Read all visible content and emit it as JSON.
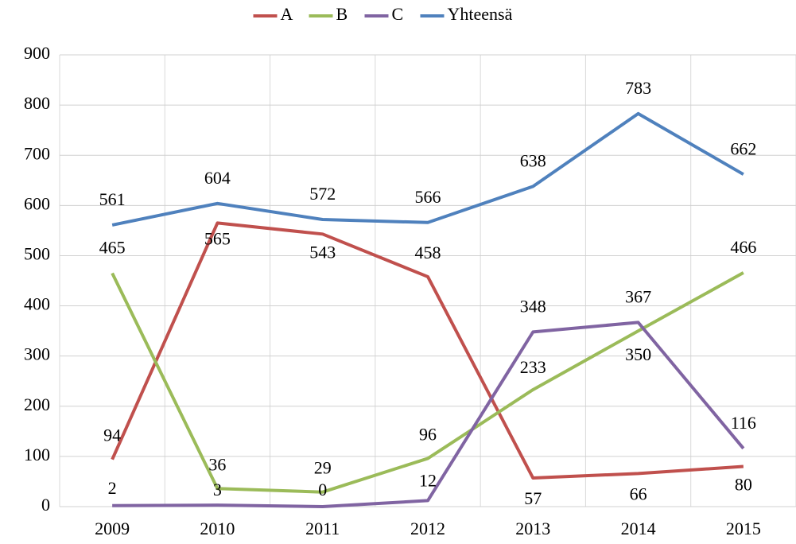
{
  "chart_data": {
    "type": "line",
    "categories": [
      "2009",
      "2010",
      "2011",
      "2012",
      "2013",
      "2014",
      "2015"
    ],
    "series": [
      {
        "name": "A",
        "color": "#c0504d",
        "values": [
          94,
          565,
          543,
          458,
          57,
          66,
          80
        ]
      },
      {
        "name": "B",
        "color": "#9bbb59",
        "values": [
          465,
          36,
          29,
          96,
          233,
          350,
          466
        ]
      },
      {
        "name": "C",
        "color": "#8064a2",
        "values": [
          2,
          3,
          0,
          12,
          348,
          367,
          116
        ]
      },
      {
        "name": "Yhteensä",
        "color": "#4f81bd",
        "values": [
          561,
          604,
          572,
          566,
          638,
          783,
          662
        ]
      }
    ],
    "ylim": [
      0,
      900
    ],
    "yticks": [
      0,
      100,
      200,
      300,
      400,
      500,
      600,
      700,
      800,
      900
    ],
    "grid": true,
    "legend": "top"
  }
}
